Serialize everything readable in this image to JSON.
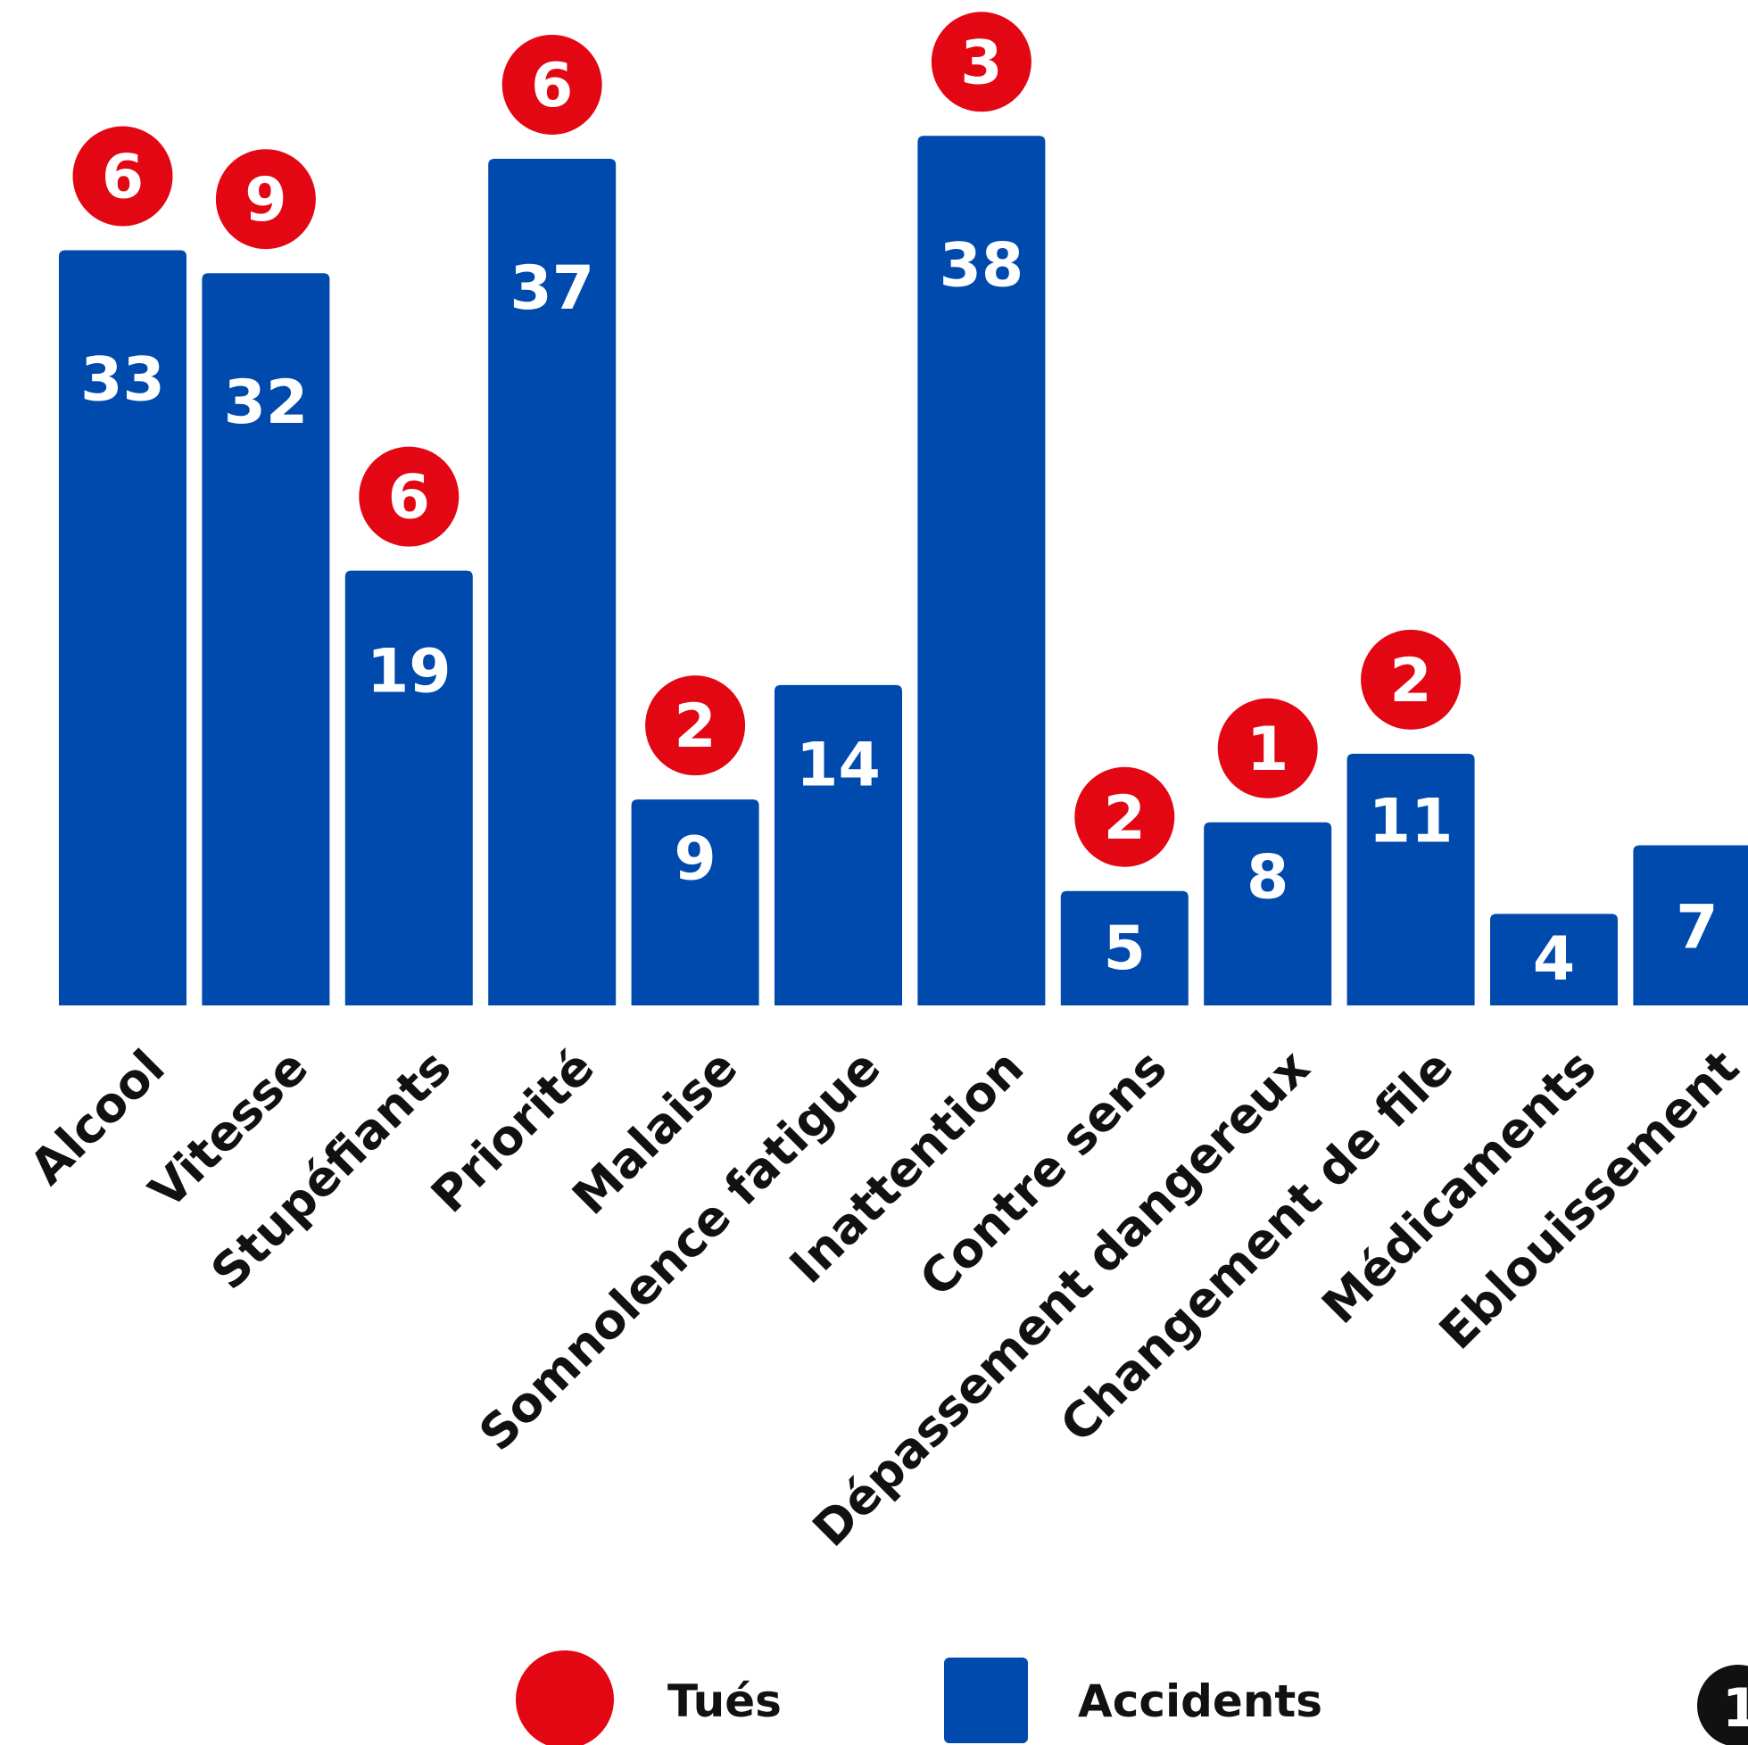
{
  "chart_data": {
    "type": "bar",
    "categories": [
      "Alcool",
      "Vitesse",
      "Stupéfiants",
      "Priorité",
      "Malaise",
      "Somnolence fatigue",
      "Inattention",
      "Contre sens",
      "Dépassement dangereux",
      "Changement de file",
      "Médicaments",
      "Eblouissement"
    ],
    "series": [
      {
        "name": "Accidents",
        "values": [
          33,
          32,
          19,
          37,
          9,
          14,
          38,
          5,
          8,
          11,
          4,
          7
        ]
      },
      {
        "name": "Tués",
        "values": [
          6,
          9,
          6,
          6,
          2,
          null,
          3,
          2,
          1,
          2,
          null,
          null
        ]
      }
    ],
    "value_labels": {
      "accidents": [
        "33",
        "32",
        "19",
        "37",
        "9",
        "14",
        "38",
        "5",
        "8",
        "11",
        "4",
        "7"
      ],
      "tues": [
        "6",
        "9",
        "6",
        "6",
        "2",
        "",
        "3",
        "2",
        "1",
        "2",
        "",
        ""
      ]
    },
    "ylim": [
      0,
      38
    ],
    "grid": false,
    "legend": {
      "placement": "bottom",
      "items": [
        {
          "label": "Tués",
          "shape": "circle",
          "color": "#e30613"
        },
        {
          "label": "Accidents",
          "shape": "square",
          "color": "#004aad"
        }
      ]
    },
    "colors": {
      "accidents": "#004aad",
      "tues": "#e30613",
      "text_on_bar": "#ffffff",
      "axis_label": "#111111"
    }
  },
  "page_badge": "1"
}
